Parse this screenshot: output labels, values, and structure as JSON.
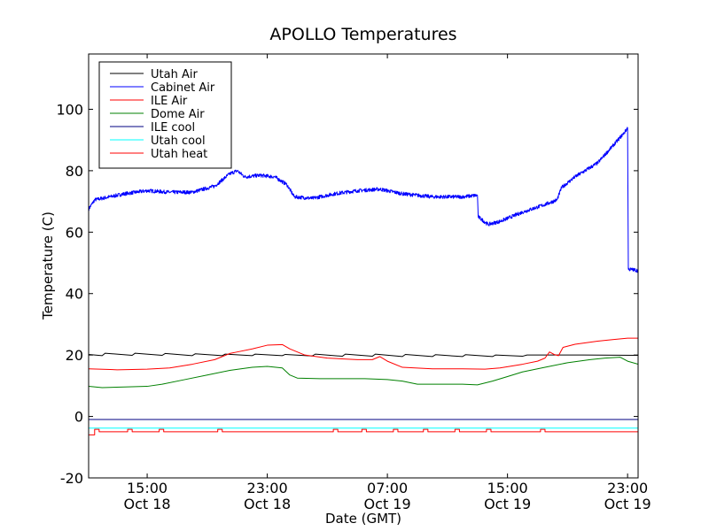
{
  "chart_data": {
    "type": "line",
    "title": "APOLLO Temperatures",
    "xlabel": "Date (GMT)",
    "ylabel": "Temperature (C)",
    "x_unit": "hours since Oct 18 00:00 GMT",
    "xlim": [
      11.1,
      47.7
    ],
    "ylim": [
      -20,
      118
    ],
    "yticks": [
      -20,
      0,
      20,
      40,
      60,
      80,
      100
    ],
    "xticks": [
      {
        "value": 15,
        "time": "15:00",
        "date": "Oct 18"
      },
      {
        "value": 23,
        "time": "23:00",
        "date": "Oct 18"
      },
      {
        "value": 31,
        "time": "07:00",
        "date": "Oct 19"
      },
      {
        "value": 39,
        "time": "15:00",
        "date": "Oct 19"
      },
      {
        "value": 47,
        "time": "23:00",
        "date": "Oct 19"
      }
    ],
    "legend_position": "top-left",
    "series": [
      {
        "name": "Utah Air",
        "color": "#000000",
        "x": [
          11.1,
          12.0,
          12.2,
          14.0,
          14.2,
          16.0,
          16.2,
          18.0,
          18.2,
          20.0,
          20.2,
          22.0,
          22.2,
          24.0,
          24.2,
          26.0,
          26.2,
          28.0,
          28.2,
          30.0,
          30.2,
          32.0,
          32.2,
          34.0,
          34.2,
          36.0,
          36.2,
          38.0,
          38.2,
          40.0,
          40.3,
          44.0,
          47.7
        ],
        "values": [
          20.2,
          19.8,
          20.6,
          19.9,
          20.6,
          19.9,
          20.5,
          19.8,
          20.4,
          19.8,
          20.3,
          19.8,
          20.3,
          19.8,
          20.2,
          19.7,
          20.3,
          19.6,
          20.3,
          19.6,
          20.3,
          19.5,
          20.2,
          19.5,
          20.1,
          19.5,
          20.1,
          19.5,
          20.0,
          19.6,
          20.0,
          20.0,
          19.9
        ]
      },
      {
        "name": "Cabinet Air",
        "color": "#0000ff",
        "x": [
          11.1,
          11.5,
          12.5,
          13.5,
          15.0,
          16.5,
          18.0,
          19.5,
          20.5,
          21.0,
          21.5,
          22.5,
          23.5,
          24.3,
          24.8,
          26.0,
          27.5,
          29.0,
          30.5,
          32.0,
          34.0,
          36.0,
          37.0,
          37.05,
          37.7,
          38.5,
          40.0,
          41.5,
          42.3,
          42.6,
          43.5,
          45.0,
          46.0,
          46.8,
          47.0,
          47.05,
          47.7
        ],
        "values": [
          67.5,
          70.5,
          71.5,
          72.5,
          73.5,
          73.0,
          73.0,
          75.0,
          79.0,
          80.0,
          78.0,
          78.5,
          78.0,
          75.5,
          71.5,
          71.0,
          72.5,
          73.5,
          74.0,
          72.5,
          71.5,
          71.5,
          72.0,
          65.0,
          62.5,
          63.5,
          66.5,
          69.0,
          70.5,
          74.5,
          78.0,
          82.5,
          88.0,
          92.5,
          94.0,
          48.0,
          47.5
        ]
      },
      {
        "name": "ILE Air",
        "color": "#ff0000",
        "x": [
          11.1,
          13.0,
          15.0,
          16.5,
          18.0,
          19.5,
          20.5,
          21.0,
          22.0,
          23.0,
          24.0,
          24.5,
          25.5,
          27.0,
          29.0,
          30.0,
          30.5,
          31.0,
          32.0,
          34.0,
          36.0,
          37.5,
          38.5,
          40.0,
          41.0,
          41.5,
          41.8,
          42.1,
          42.4,
          42.7,
          43.5,
          45.0,
          46.0,
          47.0,
          47.7
        ],
        "values": [
          15.5,
          15.2,
          15.4,
          15.8,
          17.0,
          18.5,
          20.5,
          21.0,
          22.0,
          23.2,
          23.4,
          22.0,
          20.0,
          19.0,
          18.5,
          18.5,
          19.5,
          18.0,
          16.0,
          15.5,
          15.5,
          15.4,
          15.8,
          17.0,
          18.0,
          19.0,
          21.0,
          20.2,
          19.8,
          22.5,
          23.5,
          24.5,
          25.0,
          25.5,
          25.5
        ]
      },
      {
        "name": "Dome Air",
        "color": "#008000",
        "x": [
          11.1,
          12.0,
          13.5,
          15.0,
          16.0,
          17.5,
          19.0,
          20.5,
          22.0,
          23.0,
          24.0,
          24.5,
          25.0,
          26.5,
          28.0,
          29.5,
          31.0,
          32.0,
          33.0,
          34.5,
          36.0,
          37.0,
          38.0,
          39.0,
          40.0,
          41.5,
          43.0,
          44.5,
          45.5,
          46.5,
          47.0,
          47.7
        ],
        "values": [
          9.8,
          9.4,
          9.6,
          9.8,
          10.5,
          12.0,
          13.5,
          15.0,
          16.0,
          16.3,
          15.8,
          13.5,
          12.5,
          12.3,
          12.3,
          12.3,
          12.0,
          11.5,
          10.5,
          10.5,
          10.5,
          10.3,
          11.5,
          13.0,
          14.5,
          16.0,
          17.5,
          18.5,
          19.0,
          19.3,
          18.0,
          17.0
        ]
      },
      {
        "name": "ILE cool",
        "color": "#000080",
        "x": [
          11.1,
          47.7
        ],
        "values": [
          -1.0,
          -1.0
        ]
      },
      {
        "name": "Utah cool",
        "color": "#00ffff",
        "x": [
          11.1,
          47.7
        ],
        "values": [
          -3.8,
          -3.8
        ]
      },
      {
        "name": "Utah heat",
        "color": "#ff0000",
        "x": [
          11.1,
          11.5,
          11.5,
          11.8,
          11.8,
          13.7,
          13.7,
          14.0,
          14.0,
          15.8,
          15.8,
          16.1,
          16.1,
          19.7,
          19.7,
          20.0,
          20.0,
          27.4,
          27.4,
          27.7,
          27.7,
          29.3,
          29.3,
          29.6,
          29.6,
          31.4,
          31.4,
          31.7,
          31.7,
          33.4,
          33.4,
          33.7,
          33.7,
          35.5,
          35.5,
          35.8,
          35.8,
          37.6,
          37.6,
          37.9,
          37.9,
          41.2,
          41.2,
          41.5,
          41.5,
          47.7
        ],
        "values": [
          -6.0,
          -6.0,
          -4.2,
          -4.2,
          -5.0,
          -5.0,
          -4.2,
          -4.2,
          -5.0,
          -5.0,
          -4.2,
          -4.2,
          -5.0,
          -5.0,
          -4.2,
          -4.2,
          -5.0,
          -5.0,
          -4.2,
          -4.2,
          -5.0,
          -5.0,
          -4.2,
          -4.2,
          -5.0,
          -5.0,
          -4.2,
          -4.2,
          -5.0,
          -5.0,
          -4.2,
          -4.2,
          -5.0,
          -5.0,
          -4.2,
          -4.2,
          -5.0,
          -5.0,
          -4.2,
          -4.2,
          -5.0,
          -5.0,
          -4.2,
          -4.2,
          -5.0,
          -5.0
        ]
      }
    ]
  }
}
